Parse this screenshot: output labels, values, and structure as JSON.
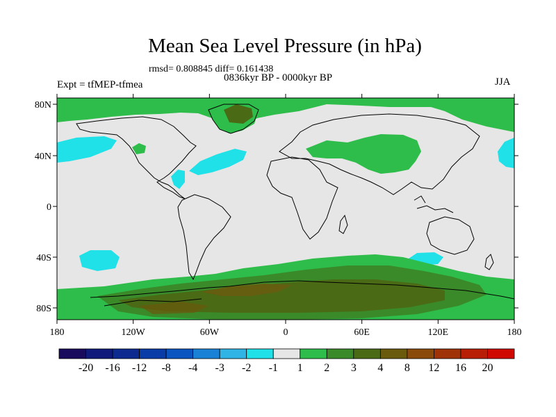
{
  "title": "Mean Sea Level Pressure (in hPa)",
  "stats": "rmsd= 0.808845 diff= 0.161438",
  "period": "0836kyr BP - 0000kyr BP",
  "experiment": "Expt = tfMEP-tfmea",
  "season": "JJA",
  "lat_labels": [
    "80N",
    "40N",
    "0",
    "40S",
    "80S"
  ],
  "lon_labels": [
    "180",
    "120W",
    "60W",
    "0",
    "60E",
    "120E",
    "180"
  ],
  "colorbar": {
    "labels": [
      "-20",
      "-16",
      "-12",
      "-8",
      "-4",
      "-3",
      "-2",
      "-1",
      "1",
      "2",
      "3",
      "4",
      "8",
      "12",
      "16",
      "20"
    ],
    "colors": [
      "#1a0a5e",
      "#101a7a",
      "#0c2a90",
      "#0a3ca8",
      "#0a55c0",
      "#1a82d6",
      "#30b4e6",
      "#20e0e8",
      "#e6e6e6",
      "#2ebd4a",
      "#3a8a2a",
      "#4a6a16",
      "#6a5a0e",
      "#8a4a0a",
      "#a03208",
      "#b81e06",
      "#d00a02"
    ]
  },
  "colors": {
    "land_outline": "#000000",
    "neutral": "#e6e6e6",
    "green": "#2ebd4a",
    "dark_green": "#3a8a2a",
    "olive": "#4a6a16",
    "brown": "#6a5a0e",
    "cyan": "#20e0e8"
  }
}
